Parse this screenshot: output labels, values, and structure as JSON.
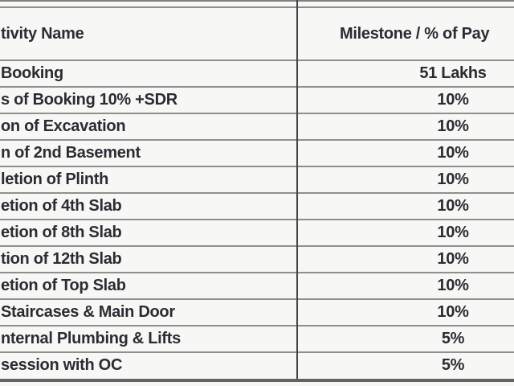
{
  "table": {
    "header": {
      "activity": "tivity Name",
      "milestone": "Milestone / % of Pay"
    },
    "rows": [
      {
        "activity": "Booking",
        "value": "51 Lakhs"
      },
      {
        "activity": "s of Booking 10% +SDR",
        "value": "10%"
      },
      {
        "activity": "on of Excavation",
        "value": "10%"
      },
      {
        "activity": "n of 2nd Basement",
        "value": "10%"
      },
      {
        "activity": "letion of Plinth",
        "value": "10%"
      },
      {
        "activity": "etion of 4th Slab",
        "value": "10%"
      },
      {
        "activity": "etion of 8th Slab",
        "value": "10%"
      },
      {
        "activity": "tion of 12th Slab",
        "value": "10%"
      },
      {
        "activity": "etion of Top Slab",
        "value": "10%"
      },
      {
        "activity": "Staircases & Main Door",
        "value": "10%"
      },
      {
        "activity": "nternal Plumbing & Lifts",
        "value": "5%"
      },
      {
        "activity": "session with OC",
        "value": "5%"
      }
    ],
    "colors": {
      "text": "#2b2b33",
      "grid_line": "#8f8f8f",
      "column_divider": "#454545",
      "bottom_border": "#636363",
      "background": "#f7f8f5"
    }
  }
}
